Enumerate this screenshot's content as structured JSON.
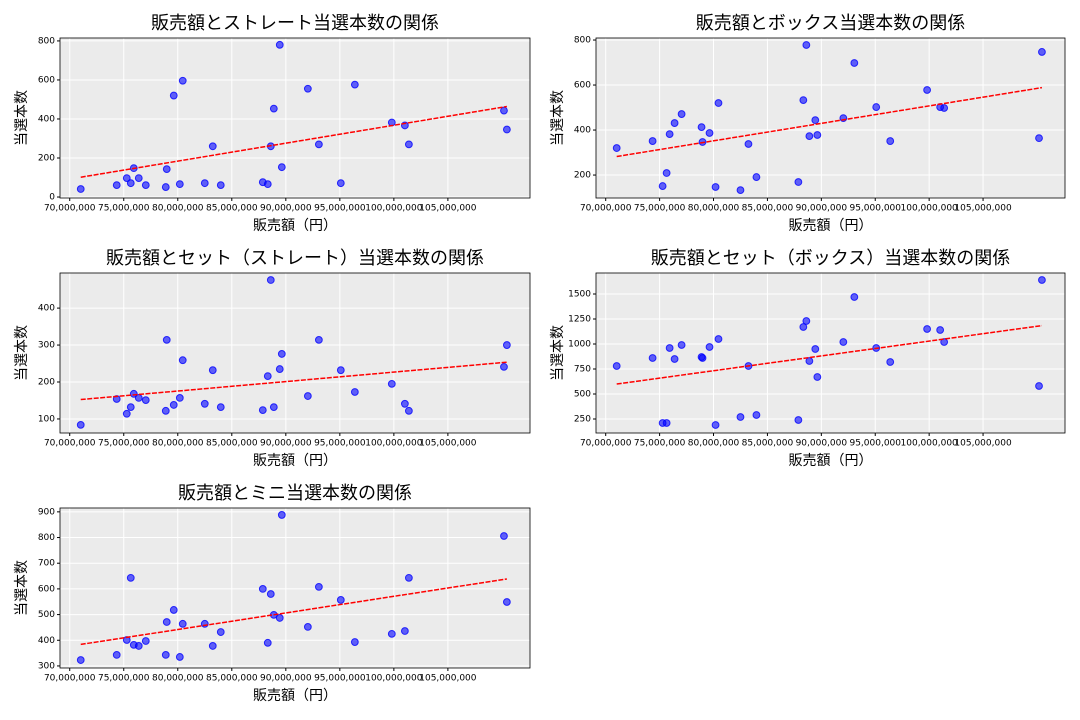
{
  "chart_data": [
    {
      "type": "scatter",
      "title": "販売額とストレート当選本数の関係",
      "x_label": "販売額（円）",
      "y_label": "当選本数",
      "x": [
        71020000,
        74350000,
        75280000,
        75650000,
        75930000,
        76390000,
        77040000,
        78890000,
        78980000,
        79630000,
        80190000,
        80460000,
        82500000,
        83240000,
        83980000,
        87870000,
        88330000,
        88610000,
        88890000,
        89440000,
        89630000,
        92040000,
        93060000,
        95090000,
        96390000,
        99810000,
        101020000,
        101390000,
        110190000,
        110460000
      ],
      "values": [
        41,
        61,
        97,
        71,
        148,
        97,
        61,
        51,
        143,
        520,
        66,
        596,
        71,
        260,
        61,
        76,
        66,
        260,
        453,
        780,
        153,
        555,
        270,
        71,
        576,
        382,
        367,
        270,
        443,
        346
      ],
      "color": "#0000ff",
      "trend_color": "#ff0000",
      "grid": true,
      "xlim": [
        69100000,
        112600000
      ],
      "ylim": [
        -5,
        815
      ],
      "xticks": [
        {
          "value": 70000000,
          "label": "70,000,000"
        },
        {
          "value": 75000000,
          "label": "75,000,000"
        },
        {
          "value": 80000000,
          "label": "80,000,000"
        },
        {
          "value": 85000000,
          "label": "85,000,000"
        },
        {
          "value": 90000000,
          "label": "90,000,000"
        },
        {
          "value": 95000000,
          "label": "95,000,000"
        },
        {
          "value": 100000000,
          "label": "100,000,000"
        },
        {
          "value": 105000000,
          "label": "105,000,000"
        }
      ],
      "yticks": [
        0,
        200,
        400,
        600,
        800
      ]
    },
    {
      "type": "scatter",
      "title": "販売額とボックス当選本数の関係",
      "x_label": "販売額（円）",
      "y_label": "当選本数",
      "x": [
        71020000,
        74350000,
        75280000,
        75650000,
        75930000,
        76390000,
        77040000,
        78890000,
        78980000,
        79630000,
        80190000,
        80460000,
        82500000,
        83240000,
        83980000,
        87870000,
        88330000,
        88610000,
        88890000,
        89440000,
        89630000,
        92040000,
        93060000,
        95090000,
        96390000,
        99810000,
        101020000,
        101390000,
        110190000,
        110460000
      ],
      "values": [
        320,
        351,
        151,
        209,
        382,
        431,
        471,
        413,
        347,
        387,
        147,
        520,
        133,
        338,
        191,
        169,
        533,
        778,
        373,
        444,
        378,
        453,
        698,
        502,
        351,
        578,
        502,
        498,
        364,
        747
      ],
      "color": "#0000ff",
      "trend_color": "#ff0000",
      "grid": true,
      "xlim": [
        69100000,
        112600000
      ],
      "ylim": [
        98,
        809
      ],
      "xticks": [
        {
          "value": 70000000,
          "label": "70,000,000"
        },
        {
          "value": 75000000,
          "label": "75,000,000"
        },
        {
          "value": 80000000,
          "label": "80,000,000"
        },
        {
          "value": 85000000,
          "label": "85,000,000"
        },
        {
          "value": 90000000,
          "label": "90,000,000"
        },
        {
          "value": 95000000,
          "label": "95,000,000"
        },
        {
          "value": 100000000,
          "label": "100,000,000"
        },
        {
          "value": 105000000,
          "label": "105,000,000"
        }
      ],
      "yticks": [
        200,
        400,
        600,
        800
      ]
    },
    {
      "type": "scatter",
      "title": "販売額とセット（ストレート）当選本数の関係",
      "x_label": "販売額（円）",
      "y_label": "当選本数",
      "x": [
        71020000,
        74350000,
        75280000,
        75650000,
        75930000,
        76390000,
        77040000,
        78890000,
        78980000,
        79630000,
        80190000,
        80460000,
        82500000,
        83240000,
        83980000,
        87870000,
        88330000,
        88610000,
        88890000,
        89440000,
        89630000,
        92040000,
        93060000,
        95090000,
        96390000,
        99810000,
        101020000,
        101390000,
        110190000,
        110460000
      ],
      "values": [
        84,
        154,
        114,
        132,
        168,
        157,
        151,
        122,
        314,
        138,
        157,
        259,
        141,
        232,
        132,
        124,
        216,
        476,
        132,
        235,
        276,
        162,
        314,
        232,
        173,
        195,
        141,
        122,
        241,
        300
      ],
      "color": "#0000ff",
      "trend_color": "#ff0000",
      "grid": true,
      "xlim": [
        69100000,
        112600000
      ],
      "ylim": [
        62,
        495
      ],
      "xticks": [
        {
          "value": 70000000,
          "label": "70,000,000"
        },
        {
          "value": 75000000,
          "label": "75,000,000"
        },
        {
          "value": 80000000,
          "label": "80,000,000"
        },
        {
          "value": 85000000,
          "label": "85,000,000"
        },
        {
          "value": 90000000,
          "label": "90,000,000"
        },
        {
          "value": 95000000,
          "label": "95,000,000"
        },
        {
          "value": 100000000,
          "label": "100,000,000"
        },
        {
          "value": 105000000,
          "label": "105,000,000"
        }
      ],
      "yticks": [
        100,
        200,
        300,
        400
      ]
    },
    {
      "type": "scatter",
      "title": "販売額とセット（ボックス）当選本数の関係",
      "x_label": "販売額（円）",
      "y_label": "当選本数",
      "x": [
        71020000,
        74350000,
        75280000,
        75650000,
        75930000,
        76390000,
        77040000,
        78890000,
        78980000,
        79630000,
        80190000,
        80460000,
        82500000,
        83240000,
        83980000,
        87870000,
        88330000,
        88610000,
        88890000,
        89440000,
        89630000,
        92040000,
        93060000,
        95090000,
        96390000,
        99810000,
        101020000,
        101390000,
        110190000,
        110460000
      ],
      "values": [
        780,
        860,
        210,
        210,
        960,
        850,
        990,
        870,
        860,
        970,
        190,
        1050,
        270,
        780,
        290,
        240,
        1170,
        1230,
        830,
        950,
        670,
        1020,
        1470,
        960,
        820,
        1150,
        1140,
        1020,
        580,
        1640
      ],
      "color": "#0000ff",
      "trend_color": "#ff0000",
      "grid": true,
      "xlim": [
        69100000,
        112600000
      ],
      "ylim": [
        110,
        1710
      ],
      "xticks": [
        {
          "value": 70000000,
          "label": "70,000,000"
        },
        {
          "value": 75000000,
          "label": "75,000,000"
        },
        {
          "value": 80000000,
          "label": "80,000,000"
        },
        {
          "value": 85000000,
          "label": "85,000,000"
        },
        {
          "value": 90000000,
          "label": "90,000,000"
        },
        {
          "value": 95000000,
          "label": "95,000,000"
        },
        {
          "value": 100000000,
          "label": "100,000,000"
        },
        {
          "value": 105000000,
          "label": "105,000,000"
        }
      ],
      "yticks": [
        250,
        500,
        750,
        1000,
        1250,
        1500
      ]
    },
    {
      "type": "scatter",
      "title": "販売額とミニ当選本数の関係",
      "x_label": "販売額（円）",
      "y_label": "当選本数",
      "x": [
        71020000,
        74350000,
        75280000,
        75650000,
        75930000,
        76390000,
        77040000,
        78890000,
        78980000,
        79630000,
        80190000,
        80460000,
        82500000,
        83240000,
        83980000,
        87870000,
        88330000,
        88610000,
        88890000,
        89440000,
        89630000,
        92040000,
        93060000,
        95090000,
        96390000,
        99810000,
        101020000,
        101390000,
        110190000,
        110460000
      ],
      "values": [
        323,
        343,
        401,
        643,
        382,
        378,
        397,
        343,
        471,
        518,
        335,
        464,
        464,
        378,
        432,
        600,
        390,
        580,
        499,
        487,
        888,
        452,
        608,
        557,
        393,
        425,
        436,
        643,
        806,
        549
      ],
      "color": "#0000ff",
      "trend_color": "#ff0000",
      "grid": true,
      "xlim": [
        69100000,
        112600000
      ],
      "ylim": [
        292,
        915
      ],
      "xticks": [
        {
          "value": 70000000,
          "label": "70,000,000"
        },
        {
          "value": 75000000,
          "label": "75,000,000"
        },
        {
          "value": 80000000,
          "label": "80,000,000"
        },
        {
          "value": 85000000,
          "label": "85,000,000"
        },
        {
          "value": 90000000,
          "label": "90,000,000"
        },
        {
          "value": 95000000,
          "label": "95,000,000"
        },
        {
          "value": 100000000,
          "label": "100,000,000"
        },
        {
          "value": 105000000,
          "label": "105,000,000"
        }
      ],
      "yticks": [
        300,
        400,
        500,
        600,
        700,
        800,
        900
      ]
    }
  ]
}
